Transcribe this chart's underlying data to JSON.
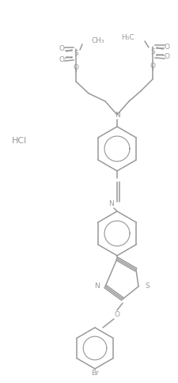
{
  "figure_width": 2.25,
  "figure_height": 4.84,
  "dpi": 100,
  "bg_color": "#ffffff",
  "line_color": "#999999",
  "text_color": "#999999",
  "font_size": 6.5,
  "hcl_label": "HCl",
  "hcl_x": 15,
  "hcl_y": 178,
  "xlim": [
    0,
    225
  ],
  "ylim": [
    484,
    0
  ]
}
